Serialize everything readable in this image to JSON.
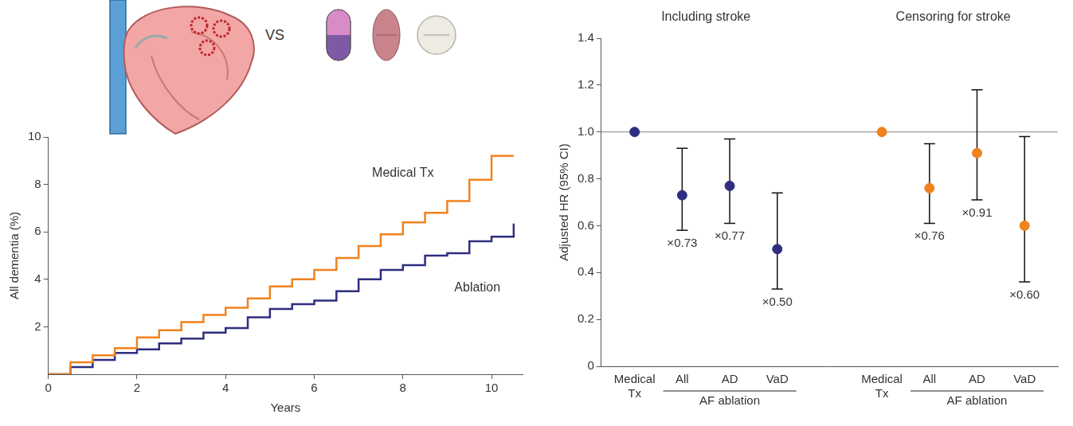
{
  "illustration": {
    "label": "VS"
  },
  "chart_data": [
    {
      "type": "line",
      "line_style": "step",
      "x_label": "Years",
      "y_label": "All dementia (%)",
      "x": [
        0,
        0.5,
        1,
        1.5,
        2,
        2.5,
        3,
        3.5,
        4,
        4.5,
        5,
        5.5,
        6,
        6.5,
        7,
        7.5,
        8,
        8.5,
        9,
        9.5,
        10,
        10.5
      ],
      "series": [
        {
          "name": "Medical Tx",
          "color": "#f0821e",
          "values": [
            0,
            0.5,
            0.8,
            1.1,
            1.55,
            1.85,
            2.2,
            2.5,
            2.8,
            3.2,
            3.7,
            4.0,
            4.4,
            4.9,
            5.4,
            5.9,
            6.4,
            6.8,
            7.3,
            8.2,
            9.2,
            9.2
          ]
        },
        {
          "name": "Ablation",
          "color": "#2e2d7f",
          "values": [
            0,
            0.3,
            0.6,
            0.9,
            1.05,
            1.3,
            1.5,
            1.75,
            1.95,
            2.4,
            2.75,
            2.95,
            3.1,
            3.5,
            4.0,
            4.4,
            4.6,
            5.0,
            5.1,
            5.6,
            5.8,
            6.35
          ]
        }
      ],
      "xlim": [
        0,
        10.7
      ],
      "xticks": [
        0,
        2,
        4,
        6,
        8,
        10
      ],
      "ylim": [
        0,
        10
      ],
      "yticks": [
        2,
        4,
        6,
        8,
        10
      ],
      "grid": false
    },
    {
      "type": "errorbar",
      "y_label": "Adjusted HR (95% CI)",
      "ylim": [
        0,
        1.4
      ],
      "yticks": [
        0,
        0.2,
        0.4,
        0.6,
        0.8,
        {
          "value": 1,
          "label": "1.0"
        },
        1.2,
        1.4
      ],
      "reference_line": 1,
      "grid": false,
      "bracket": {
        "label": "AF ablation",
        "categories": [
          "All",
          "AD",
          "VaD"
        ]
      },
      "groups": [
        {
          "title": "Including stroke",
          "color": "#2e2d7f",
          "categories": [
            "Medical Tx",
            "All",
            "AD",
            "VaD"
          ],
          "values": [
            1,
            0.73,
            0.77,
            0.5
          ],
          "lower": [
            null,
            0.58,
            0.61,
            0.33
          ],
          "upper": [
            null,
            0.93,
            0.97,
            0.74
          ],
          "value_labels": [
            null,
            "×0.73",
            "×0.77",
            "×0.50"
          ]
        },
        {
          "title": "Censoring for stroke",
          "color": "#f0821e",
          "categories": [
            "Medical Tx",
            "All",
            "AD",
            "VaD"
          ],
          "values": [
            1,
            0.76,
            0.91,
            0.6
          ],
          "lower": [
            null,
            0.61,
            0.71,
            0.36
          ],
          "upper": [
            null,
            0.95,
            1.18,
            0.98
          ],
          "value_labels": [
            null,
            "×0.76",
            "×0.91",
            "×0.60"
          ]
        }
      ]
    }
  ]
}
